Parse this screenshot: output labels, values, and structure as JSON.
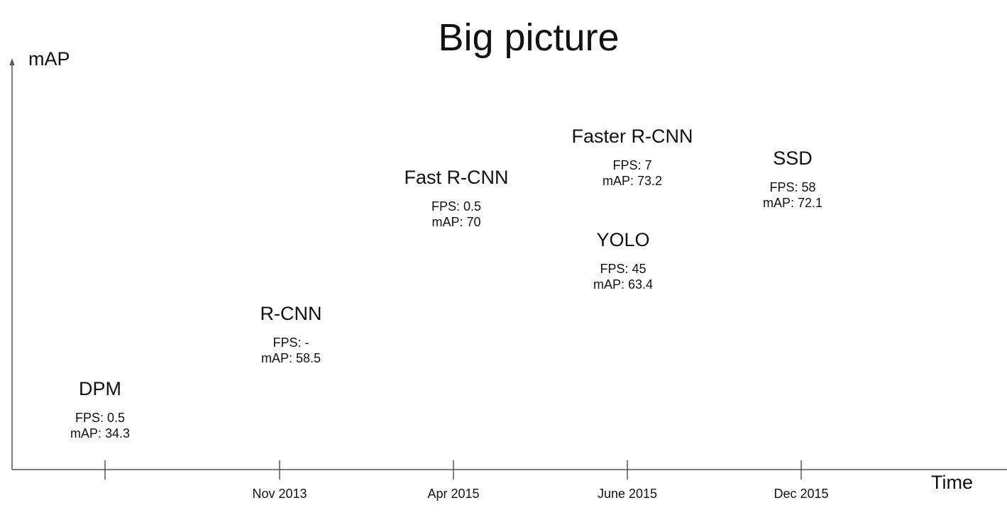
{
  "title": "Big picture",
  "y_axis_label": "mAP",
  "x_axis_label": "Time",
  "tick_labels": [
    "",
    "Nov 2013",
    "Apr 2015",
    "June 2015",
    "Dec 2015"
  ],
  "methods": [
    {
      "name": "DPM",
      "fps": "FPS: 0.5",
      "map": "mAP: 34.3"
    },
    {
      "name": "R-CNN",
      "fps": "FPS: -",
      "map": "mAP: 58.5"
    },
    {
      "name": "Fast R-CNN",
      "fps": "FPS: 0.5",
      "map": "mAP: 70"
    },
    {
      "name": "Faster R-CNN",
      "fps": "FPS: 7",
      "map": "mAP: 73.2"
    },
    {
      "name": "YOLO",
      "fps": "FPS: 45",
      "map": "mAP: 63.4"
    },
    {
      "name": "SSD",
      "fps": "FPS: 58",
      "map": "mAP: 72.1"
    }
  ],
  "colors": {
    "text": "#111111",
    "axis": "#555555"
  }
}
